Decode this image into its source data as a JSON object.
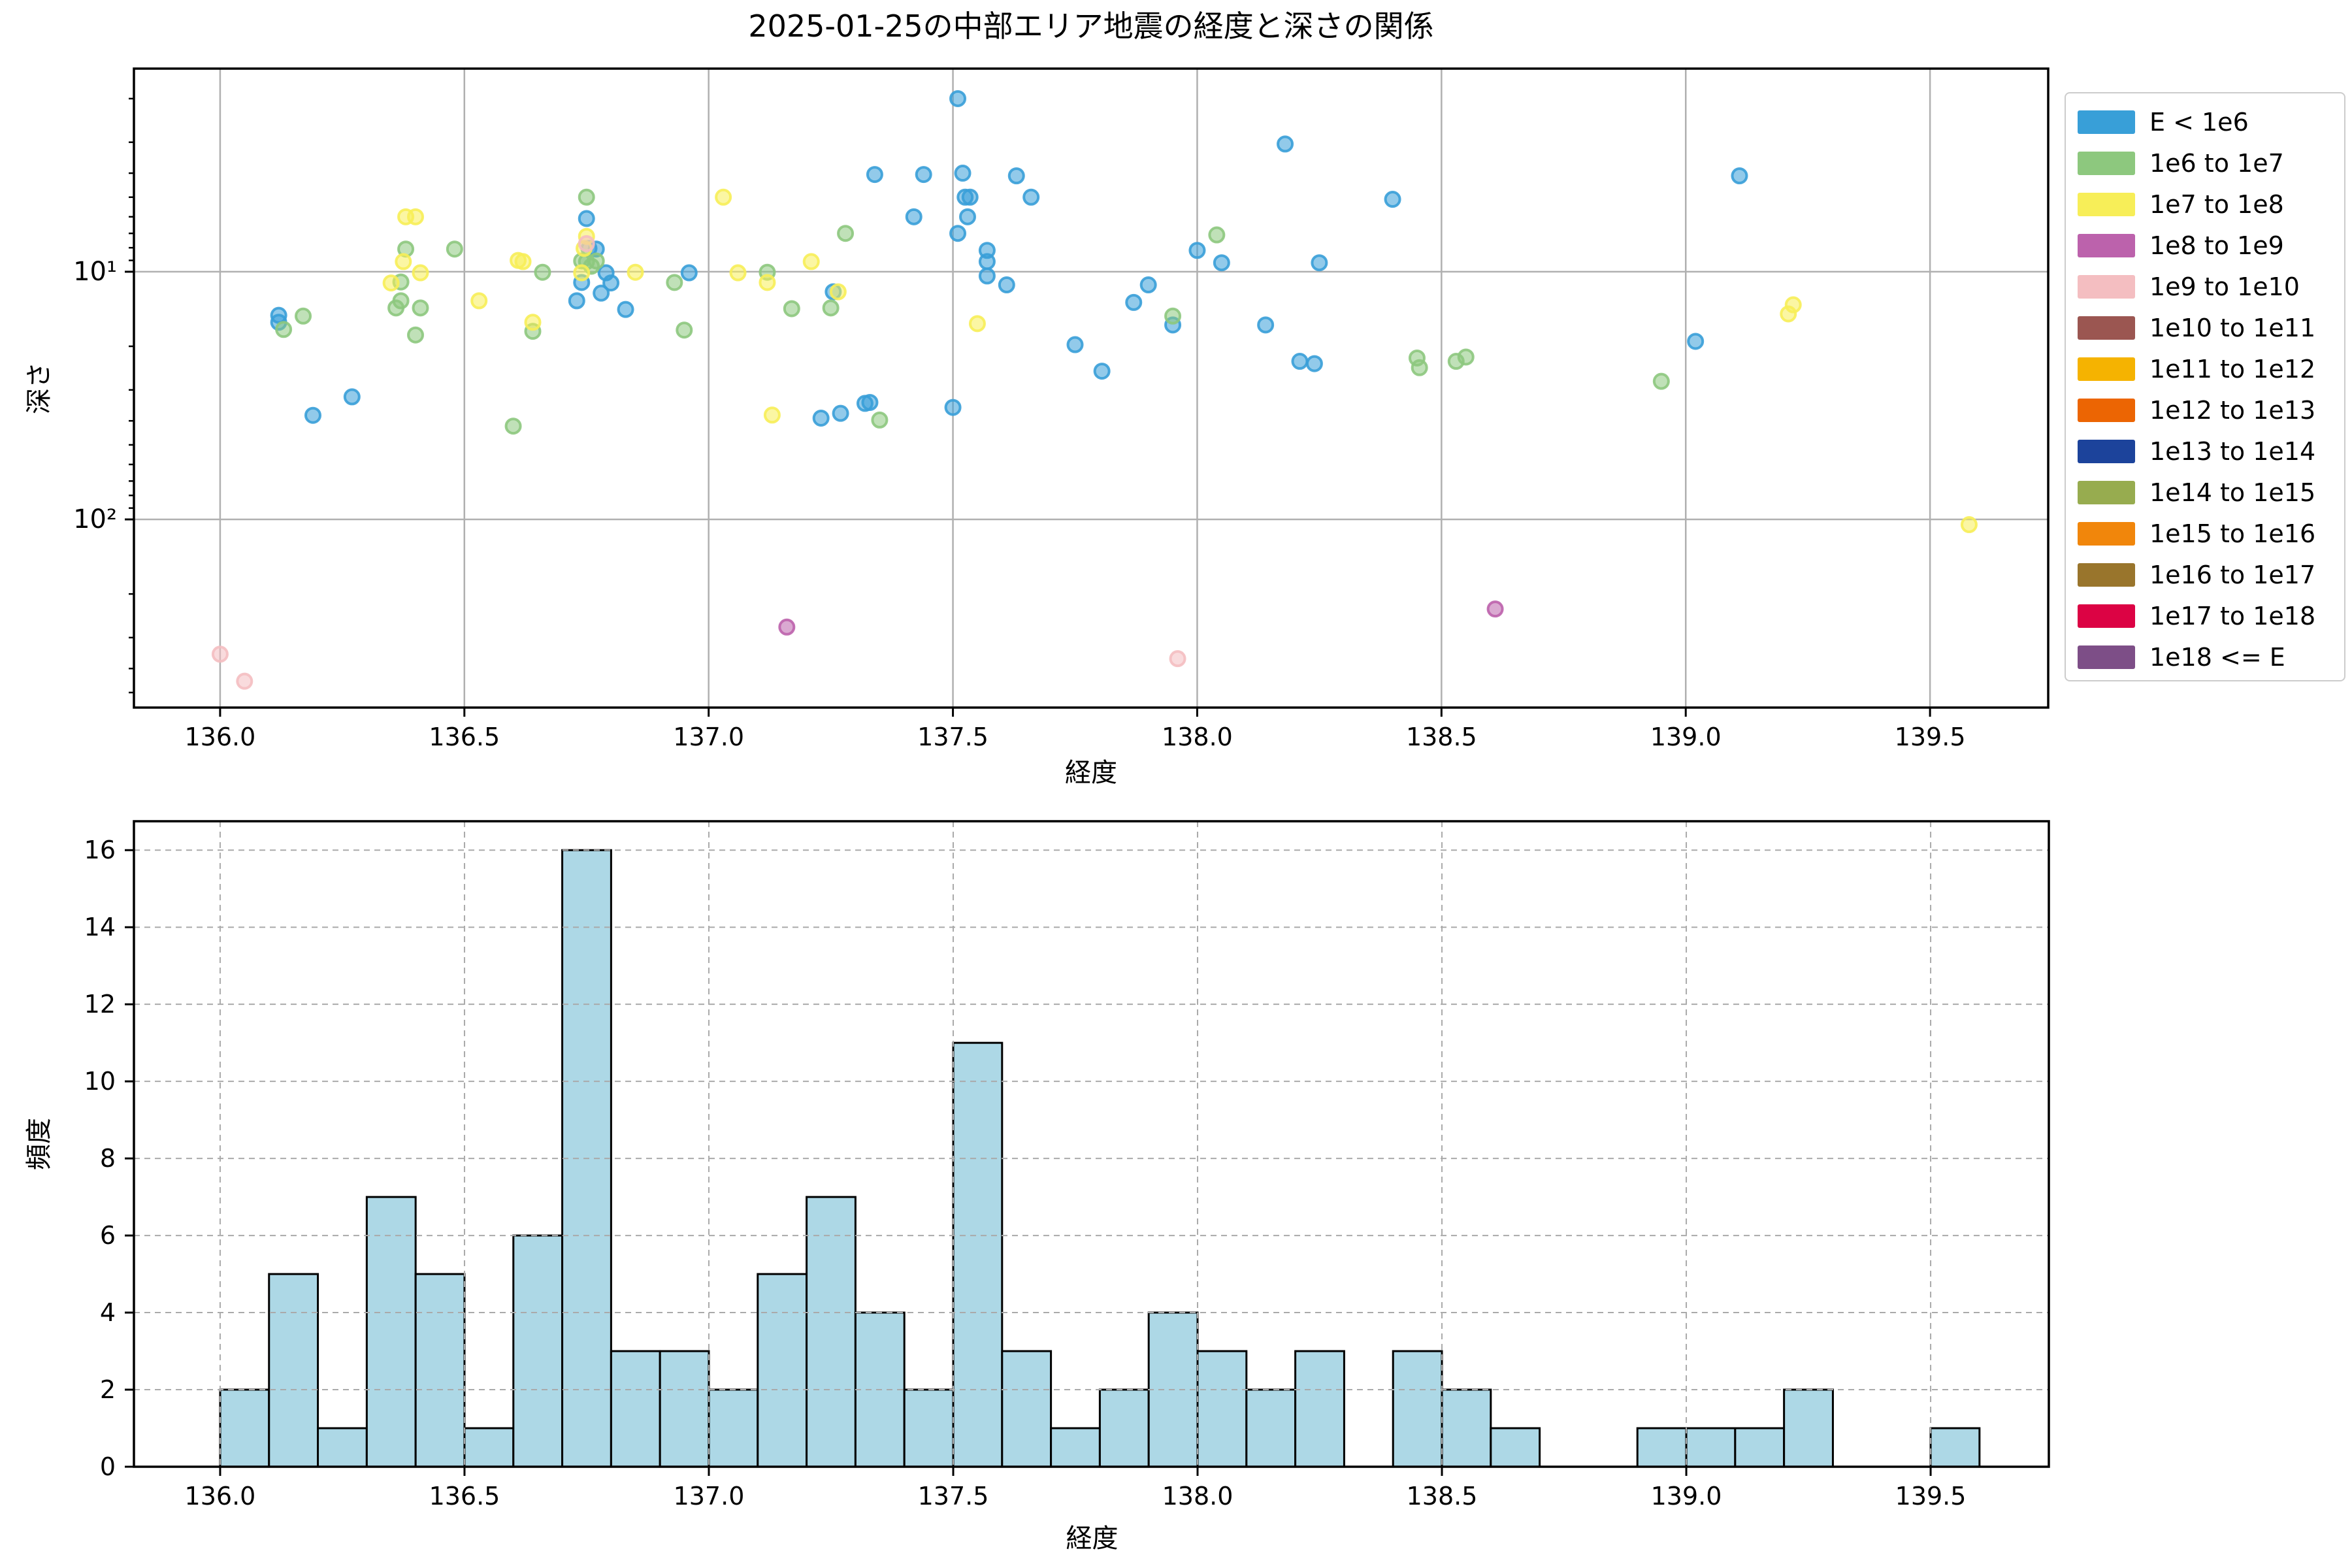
{
  "figure": {
    "title": "2025-01-25の中部エリア地震の経度と深さの関係",
    "background": "#ffffff"
  },
  "chart_data": [
    {
      "type": "scatter",
      "title": "2025-01-25の中部エリア地震の経度と深さの関係",
      "xlabel": "経度",
      "ylabel": "深さ",
      "xlim": [
        135.8236,
        139.7419
      ],
      "ylim": [
        1.513,
        575
      ],
      "y_scale": "log-inverted",
      "grid": "solid",
      "grid_color": "#b0b0b0",
      "xticks": [
        136.0,
        136.5,
        137.0,
        137.5,
        138.0,
        138.5,
        139.0,
        139.5
      ],
      "yticks": [
        {
          "label": "10¹",
          "value": 10
        },
        {
          "label": "10²",
          "value": 100
        }
      ],
      "legend_position": "outside-right",
      "series": [
        {
          "name": "E < 1e6",
          "color": "#389FD8",
          "points": [
            [
              136.12,
              15
            ],
            [
              136.12,
              16
            ],
            [
              136.27,
              32
            ],
            [
              136.19,
              38
            ],
            [
              136.75,
              6.1
            ],
            [
              136.755,
              8.05
            ],
            [
              136.79,
              10.1
            ],
            [
              136.8,
              11.1
            ],
            [
              136.78,
              12.2
            ],
            [
              136.73,
              13.1
            ],
            [
              136.83,
              14.2
            ],
            [
              136.96,
              10.1
            ],
            [
              136.77,
              8.1
            ],
            [
              136.74,
              11.05
            ],
            [
              137.255,
              12.05
            ],
            [
              137.34,
              4.05
            ],
            [
              137.42,
              6
            ],
            [
              137.44,
              4.05
            ],
            [
              137.52,
              4
            ],
            [
              137.525,
              5
            ],
            [
              137.535,
              5
            ],
            [
              137.53,
              6
            ],
            [
              137.51,
              7
            ],
            [
              137.51,
              2
            ],
            [
              137.23,
              39
            ],
            [
              137.27,
              37.3
            ],
            [
              137.32,
              34
            ],
            [
              137.33,
              33.7
            ],
            [
              137.5,
              35.3
            ],
            [
              137.63,
              4.1
            ],
            [
              137.66,
              5
            ],
            [
              138.18,
              3.05
            ],
            [
              138.4,
              5.1
            ],
            [
              138.0,
              8.2
            ],
            [
              138.05,
              9.2
            ],
            [
              138.25,
              9.2
            ],
            [
              137.57,
              8.2
            ],
            [
              137.57,
              9.1
            ],
            [
              137.57,
              10.4
            ],
            [
              137.61,
              11.3
            ],
            [
              137.9,
              11.3
            ],
            [
              137.87,
              13.3
            ],
            [
              137.95,
              16.4
            ],
            [
              138.14,
              16.4
            ],
            [
              137.75,
              19.7
            ],
            [
              137.805,
              25.2
            ],
            [
              138.21,
              23
            ],
            [
              138.24,
              23.5
            ],
            [
              139.02,
              19.1
            ],
            [
              139.11,
              4.1
            ]
          ]
        },
        {
          "name": "1e6 to 1e7",
          "color": "#8DC87E",
          "points": [
            [
              136.38,
              8.1
            ],
            [
              136.48,
              8.1
            ],
            [
              136.37,
              11
            ],
            [
              136.37,
              13.1
            ],
            [
              136.36,
              14
            ],
            [
              136.41,
              14
            ],
            [
              136.17,
              15.1
            ],
            [
              136.13,
              17.1
            ],
            [
              136.4,
              18
            ],
            [
              136.6,
              42
            ],
            [
              136.75,
              5
            ],
            [
              136.74,
              9.05
            ],
            [
              136.75,
              9.1
            ],
            [
              136.77,
              9.05
            ],
            [
              136.76,
              9.5
            ],
            [
              136.66,
              10.05
            ],
            [
              136.64,
              17.4
            ],
            [
              136.93,
              11.05
            ],
            [
              136.95,
              17.2
            ],
            [
              137.12,
              10.05
            ],
            [
              137.17,
              14.1
            ],
            [
              137.25,
              14
            ],
            [
              137.28,
              7
            ],
            [
              137.35,
              39.7
            ],
            [
              138.04,
              7.1
            ],
            [
              137.95,
              15.1
            ],
            [
              138.45,
              22.3
            ],
            [
              138.455,
              24.4
            ],
            [
              138.55,
              22.1
            ],
            [
              138.53,
              23
            ],
            [
              138.95,
              27.7
            ]
          ]
        },
        {
          "name": "1e7 to 1e8",
          "color": "#F7EE58",
          "points": [
            [
              136.38,
              6
            ],
            [
              136.4,
              6
            ],
            [
              136.375,
              9.1
            ],
            [
              136.41,
              10.1
            ],
            [
              136.35,
              11.1
            ],
            [
              136.53,
              13.1
            ],
            [
              136.745,
              8.05
            ],
            [
              136.61,
              9
            ],
            [
              136.62,
              9.1
            ],
            [
              136.74,
              10.1
            ],
            [
              136.85,
              10.05
            ],
            [
              136.64,
              16
            ],
            [
              136.75,
              7.2
            ],
            [
              137.03,
              5
            ],
            [
              137.06,
              10.1
            ],
            [
              137.12,
              11.05
            ],
            [
              137.21,
              9.1
            ],
            [
              137.265,
              12.05
            ],
            [
              137.13,
              37.9
            ],
            [
              137.55,
              16.2
            ],
            [
              139.22,
              13.6
            ],
            [
              139.21,
              14.8
            ],
            [
              139.58,
              105
            ]
          ]
        },
        {
          "name": "1e8 to 1e9",
          "color": "#BC62AC",
          "points": [
            [
              137.16,
              272
            ],
            [
              138.61,
              230
            ]
          ]
        },
        {
          "name": "1e9 to 1e10",
          "color": "#F4BEC1",
          "points": [
            [
              136.75,
              7.7
            ],
            [
              136.0,
              350
            ],
            [
              136.05,
              450
            ],
            [
              137.96,
              365
            ]
          ]
        },
        {
          "name": "1e10 to 1e11",
          "color": "#9B5651",
          "points": []
        },
        {
          "name": "1e11 to 1e12",
          "color": "#F5B301",
          "points": []
        },
        {
          "name": "1e12 to 1e13",
          "color": "#EC6503",
          "points": []
        },
        {
          "name": "1e13 to 1e14",
          "color": "#1C439B",
          "points": []
        },
        {
          "name": "1e14 to 1e15",
          "color": "#97AC4F",
          "points": []
        },
        {
          "name": "1e15 to 1e16",
          "color": "#F1860B",
          "points": []
        },
        {
          "name": "1e16 to 1e17",
          "color": "#99752C",
          "points": []
        },
        {
          "name": "1e17 to 1e18",
          "color": "#DC0344",
          "points": []
        },
        {
          "name": "1e18 <= E",
          "color": "#7D4E87",
          "points": []
        }
      ]
    },
    {
      "type": "bar",
      "subtype": "histogram",
      "xlabel": "経度",
      "ylabel": "頻度",
      "xlim": [
        135.8236,
        139.7419
      ],
      "ylim": [
        0,
        16.75
      ],
      "grid": "dashed",
      "grid_color": "#aaaaaa",
      "bar_color": "#ADD8E6",
      "bar_edge_color": "#000000",
      "bin_start": 136.0,
      "bin_width": 0.1,
      "counts": [
        2,
        5,
        1,
        7,
        5,
        1,
        6,
        16,
        3,
        3,
        2,
        5,
        7,
        4,
        2,
        11,
        3,
        1,
        2,
        4,
        3,
        2,
        3,
        0,
        3,
        2,
        1,
        0,
        0,
        1,
        1,
        1,
        2,
        0,
        0,
        1
      ],
      "xticks": [
        136.0,
        136.5,
        137.0,
        137.5,
        138.0,
        138.5,
        139.0,
        139.5
      ],
      "yticks": [
        0,
        2,
        4,
        6,
        8,
        10,
        12,
        14,
        16
      ]
    }
  ],
  "legend": {
    "items": [
      {
        "label": "E < 1e6",
        "color": "#389FD8"
      },
      {
        "label": "1e6 to 1e7",
        "color": "#8DC87E"
      },
      {
        "label": "1e7 to 1e8",
        "color": "#F7EE58"
      },
      {
        "label": "1e8 to 1e9",
        "color": "#BC62AC"
      },
      {
        "label": "1e9 to 1e10",
        "color": "#F4BEC1"
      },
      {
        "label": "1e10 to 1e11",
        "color": "#9B5651"
      },
      {
        "label": "1e11 to 1e12",
        "color": "#F5B301"
      },
      {
        "label": "1e12 to 1e13",
        "color": "#EC6503"
      },
      {
        "label": "1e13 to 1e14",
        "color": "#1C439B"
      },
      {
        "label": "1e14 to 1e15",
        "color": "#97AC4F"
      },
      {
        "label": "1e15 to 1e16",
        "color": "#F1860B"
      },
      {
        "label": "1e16 to 1e17",
        "color": "#99752C"
      },
      {
        "label": "1e17 to 1e18",
        "color": "#DC0344"
      },
      {
        "label": "1e18 <= E",
        "color": "#7D4E87"
      }
    ]
  }
}
